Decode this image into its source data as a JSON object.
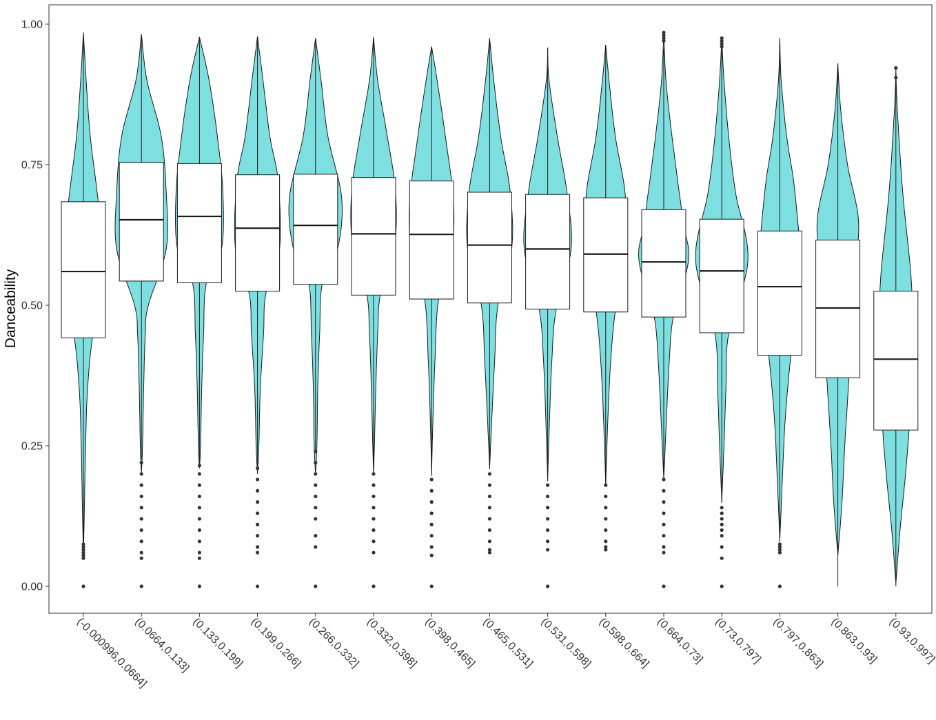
{
  "chart_data": {
    "type": "violin+box",
    "title": "",
    "xlabel": "",
    "ylabel": "Danceability",
    "ylim": [
      -0.045,
      1.035
    ],
    "yticks": [
      0,
      0.25,
      0.5,
      0.75,
      1.0
    ],
    "ytick_labels": [
      "0.00",
      "0.25",
      "0.50",
      "0.75",
      "1.00"
    ],
    "grid": false,
    "legend": "none",
    "colors": {
      "violin_fill": "#7DDFE0",
      "outline": "#1a1a1a",
      "box_fill": "#ffffff",
      "outlier": "#333333"
    },
    "categories": [
      "(-0.000996,0.0664]",
      "(0.0664,0.133]",
      "(0.133,0.199]",
      "(0.199,0.266]",
      "(0.266,0.332]",
      "(0.332,0.398]",
      "(0.398,0.465]",
      "(0.465,0.531]",
      "(0.531,0.598]",
      "(0.598,0.664]",
      "(0.664,0.73]",
      "(0.73,0.797]",
      "(0.797,0.863]",
      "(0.863,0.93]",
      "(0.93,0.997]"
    ],
    "boxes": [
      {
        "q1": 0.442,
        "median": 0.56,
        "q3": 0.684,
        "whisker_low": 0.079,
        "whisker_high": 0.985,
        "outliers": [
          0.075,
          0.07,
          0.065,
          0.06,
          0.055,
          0.05,
          0.0
        ]
      },
      {
        "q1": 0.543,
        "median": 0.652,
        "q3": 0.754,
        "whisker_low": 0.226,
        "whisker_high": 0.982,
        "outliers": [
          0.22,
          0.2,
          0.18,
          0.16,
          0.14,
          0.12,
          0.1,
          0.08,
          0.06,
          0.05,
          0.0
        ]
      },
      {
        "q1": 0.54,
        "median": 0.658,
        "q3": 0.752,
        "whisker_low": 0.222,
        "whisker_high": 0.977,
        "outliers": [
          0.215,
          0.2,
          0.18,
          0.16,
          0.14,
          0.12,
          0.1,
          0.08,
          0.06,
          0.05,
          0.0
        ]
      },
      {
        "q1": 0.525,
        "median": 0.637,
        "q3": 0.732,
        "whisker_low": 0.214,
        "whisker_high": 0.978,
        "outliers": [
          0.21,
          0.19,
          0.17,
          0.15,
          0.13,
          0.11,
          0.09,
          0.07,
          0.06,
          0.0
        ]
      },
      {
        "q1": 0.537,
        "median": 0.642,
        "q3": 0.733,
        "whisker_low": 0.243,
        "whisker_high": 0.975,
        "outliers": [
          0.24,
          0.22,
          0.2,
          0.18,
          0.16,
          0.14,
          0.12,
          0.09,
          0.07,
          0.0
        ]
      },
      {
        "q1": 0.518,
        "median": 0.627,
        "q3": 0.727,
        "whisker_low": 0.204,
        "whisker_high": 0.977,
        "outliers": [
          0.2,
          0.18,
          0.16,
          0.14,
          0.12,
          0.1,
          0.08,
          0.06,
          0.0
        ]
      },
      {
        "q1": 0.511,
        "median": 0.626,
        "q3": 0.721,
        "whisker_low": 0.196,
        "whisker_high": 0.96,
        "outliers": [
          0.19,
          0.17,
          0.15,
          0.13,
          0.11,
          0.09,
          0.07,
          0.055,
          0.0
        ]
      },
      {
        "q1": 0.504,
        "median": 0.607,
        "q3": 0.701,
        "whisker_low": 0.208,
        "whisker_high": 0.975,
        "outliers": [
          0.2,
          0.18,
          0.16,
          0.14,
          0.12,
          0.1,
          0.08,
          0.065,
          0.06
        ]
      },
      {
        "q1": 0.493,
        "median": 0.6,
        "q3": 0.697,
        "whisker_low": 0.187,
        "whisker_high": 0.958,
        "outliers": [
          0.18,
          0.16,
          0.14,
          0.12,
          0.1,
          0.08,
          0.065,
          0.0
        ]
      },
      {
        "q1": 0.488,
        "median": 0.591,
        "q3": 0.691,
        "whisker_low": 0.183,
        "whisker_high": 0.963,
        "outliers": [
          0.18,
          0.16,
          0.14,
          0.12,
          0.1,
          0.08,
          0.07,
          0.065
        ]
      },
      {
        "q1": 0.479,
        "median": 0.577,
        "q3": 0.67,
        "whisker_low": 0.192,
        "whisker_high": 0.956,
        "outliers": [
          0.985,
          0.98,
          0.975,
          0.97,
          0.19,
          0.17,
          0.15,
          0.13,
          0.11,
          0.09,
          0.07,
          0.06,
          0.0
        ]
      },
      {
        "q1": 0.451,
        "median": 0.561,
        "q3": 0.653,
        "whisker_low": 0.148,
        "whisker_high": 0.956,
        "outliers": [
          0.975,
          0.97,
          0.965,
          0.96,
          0.14,
          0.13,
          0.12,
          0.11,
          0.1,
          0.09,
          0.07,
          0.05,
          0.0
        ]
      },
      {
        "q1": 0.411,
        "median": 0.533,
        "q3": 0.632,
        "whisker_low": 0.079,
        "whisker_high": 0.975,
        "outliers": [
          0.075,
          0.07,
          0.065,
          0.06,
          0.0
        ]
      },
      {
        "q1": 0.371,
        "median": 0.495,
        "q3": 0.616,
        "whisker_low": 0.0,
        "whisker_high": 0.93,
        "outliers": []
      },
      {
        "q1": 0.278,
        "median": 0.404,
        "q3": 0.525,
        "whisker_low": 0.0,
        "whisker_high": 0.896,
        "outliers": [
          0.905,
          0.922
        ]
      }
    ],
    "violin_density": [
      [
        [
          0.985,
          0
        ],
        [
          0.9,
          0.1
        ],
        [
          0.8,
          0.25
        ],
        [
          0.7,
          0.5
        ],
        [
          0.56,
          0.8
        ],
        [
          0.45,
          0.35
        ],
        [
          0.35,
          0.15
        ],
        [
          0.25,
          0.08
        ],
        [
          0.15,
          0.04
        ],
        [
          0.05,
          0
        ]
      ],
      [
        [
          0.982,
          0
        ],
        [
          0.9,
          0.2
        ],
        [
          0.8,
          0.72
        ],
        [
          0.7,
          0.9
        ],
        [
          0.6,
          0.9
        ],
        [
          0.5,
          0.25
        ],
        [
          0.45,
          0.14
        ],
        [
          0.35,
          0.08
        ],
        [
          0.25,
          0.04
        ],
        [
          0.2,
          0
        ]
      ],
      [
        [
          0.977,
          0
        ],
        [
          0.9,
          0.35
        ],
        [
          0.8,
          0.65
        ],
        [
          0.7,
          0.85
        ],
        [
          0.6,
          0.8
        ],
        [
          0.54,
          0.25
        ],
        [
          0.45,
          0.15
        ],
        [
          0.35,
          0.08
        ],
        [
          0.25,
          0.04
        ],
        [
          0.21,
          0
        ]
      ],
      [
        [
          0.978,
          0
        ],
        [
          0.9,
          0.2
        ],
        [
          0.8,
          0.45
        ],
        [
          0.72,
          0.75
        ],
        [
          0.6,
          0.8
        ],
        [
          0.52,
          0.3
        ],
        [
          0.45,
          0.22
        ],
        [
          0.35,
          0.1
        ],
        [
          0.25,
          0.05
        ],
        [
          0.2,
          0
        ]
      ],
      [
        [
          0.975,
          0
        ],
        [
          0.9,
          0.2
        ],
        [
          0.8,
          0.45
        ],
        [
          0.69,
          0.95
        ],
        [
          0.6,
          0.8
        ],
        [
          0.54,
          0.25
        ],
        [
          0.45,
          0.15
        ],
        [
          0.35,
          0.08
        ],
        [
          0.25,
          0.05
        ],
        [
          0.2,
          0
        ]
      ],
      [
        [
          0.977,
          0
        ],
        [
          0.9,
          0.15
        ],
        [
          0.8,
          0.5
        ],
        [
          0.7,
          0.8
        ],
        [
          0.6,
          0.75
        ],
        [
          0.52,
          0.25
        ],
        [
          0.45,
          0.15
        ],
        [
          0.35,
          0.08
        ],
        [
          0.25,
          0.03
        ],
        [
          0.2,
          0
        ]
      ],
      [
        [
          0.96,
          0
        ],
        [
          0.9,
          0.2
        ],
        [
          0.8,
          0.5
        ],
        [
          0.68,
          0.8
        ],
        [
          0.58,
          0.7
        ],
        [
          0.51,
          0.25
        ],
        [
          0.4,
          0.12
        ],
        [
          0.3,
          0.05
        ],
        [
          0.2,
          0
        ]
      ],
      [
        [
          0.975,
          0
        ],
        [
          0.9,
          0.15
        ],
        [
          0.8,
          0.4
        ],
        [
          0.7,
          0.75
        ],
        [
          0.6,
          0.8
        ],
        [
          0.5,
          0.3
        ],
        [
          0.4,
          0.18
        ],
        [
          0.3,
          0.08
        ],
        [
          0.21,
          0
        ]
      ],
      [
        [
          0.958,
          0
        ],
        [
          0.9,
          0.05
        ],
        [
          0.8,
          0.35
        ],
        [
          0.7,
          0.7
        ],
        [
          0.6,
          0.85
        ],
        [
          0.49,
          0.3
        ],
        [
          0.4,
          0.15
        ],
        [
          0.3,
          0.07
        ],
        [
          0.19,
          0
        ]
      ],
      [
        [
          0.963,
          0
        ],
        [
          0.9,
          0.12
        ],
        [
          0.8,
          0.35
        ],
        [
          0.7,
          0.7
        ],
        [
          0.6,
          0.75
        ],
        [
          0.49,
          0.35
        ],
        [
          0.4,
          0.18
        ],
        [
          0.3,
          0.08
        ],
        [
          0.18,
          0
        ]
      ],
      [
        [
          0.985,
          0
        ],
        [
          0.9,
          0.08
        ],
        [
          0.8,
          0.3
        ],
        [
          0.65,
          0.7
        ],
        [
          0.58,
          0.9
        ],
        [
          0.48,
          0.35
        ],
        [
          0.4,
          0.2
        ],
        [
          0.3,
          0.1
        ],
        [
          0.19,
          0
        ]
      ],
      [
        [
          0.975,
          0
        ],
        [
          0.9,
          0.08
        ],
        [
          0.8,
          0.25
        ],
        [
          0.7,
          0.5
        ],
        [
          0.58,
          0.95
        ],
        [
          0.45,
          0.25
        ],
        [
          0.35,
          0.15
        ],
        [
          0.25,
          0.08
        ],
        [
          0.15,
          0
        ]
      ],
      [
        [
          0.975,
          0
        ],
        [
          0.9,
          0.05
        ],
        [
          0.8,
          0.25
        ],
        [
          0.7,
          0.55
        ],
        [
          0.55,
          0.75
        ],
        [
          0.41,
          0.4
        ],
        [
          0.3,
          0.2
        ],
        [
          0.2,
          0.1
        ],
        [
          0.08,
          0
        ]
      ],
      [
        [
          0.93,
          0
        ],
        [
          0.85,
          0.1
        ],
        [
          0.75,
          0.35
        ],
        [
          0.65,
          0.75
        ],
        [
          0.55,
          0.6
        ],
        [
          0.37,
          0.4
        ],
        [
          0.25,
          0.25
        ],
        [
          0.15,
          0.15
        ],
        [
          0.055,
          0
        ]
      ],
      [
        [
          0.92,
          0
        ],
        [
          0.85,
          0.05
        ],
        [
          0.7,
          0.25
        ],
        [
          0.55,
          0.55
        ],
        [
          0.45,
          0.6
        ],
        [
          0.3,
          0.5
        ],
        [
          0.2,
          0.35
        ],
        [
          0.1,
          0.15
        ],
        [
          0.005,
          0
        ]
      ]
    ]
  }
}
